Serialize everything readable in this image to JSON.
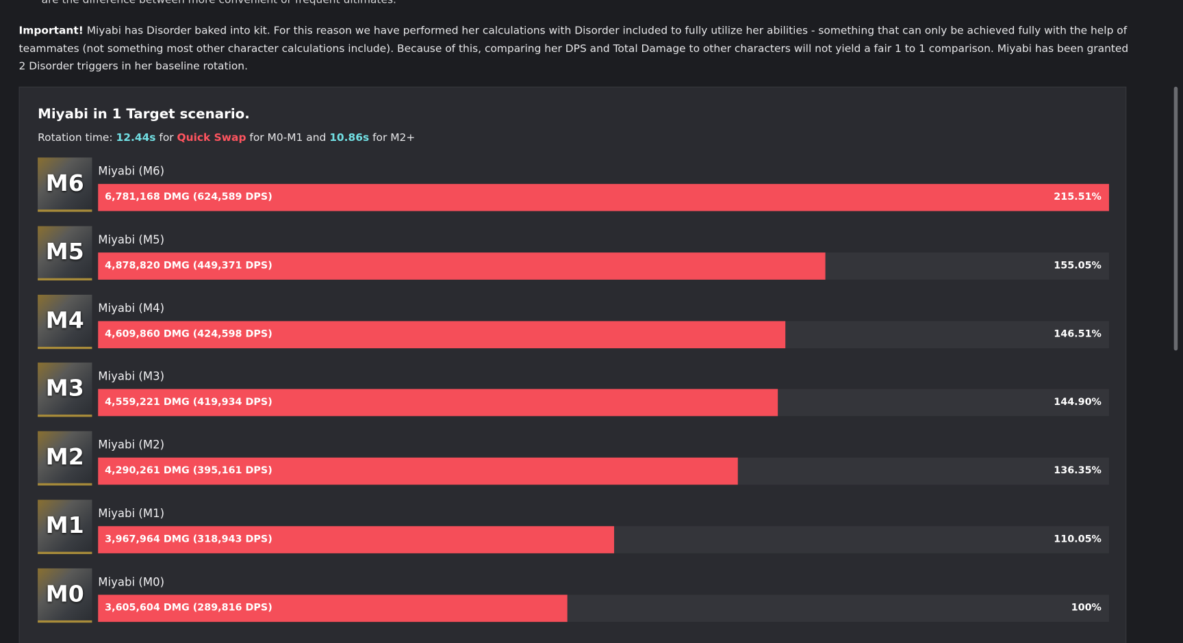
{
  "top_fragment": "are the difference between more convenient or frequent ultimates.",
  "notice": {
    "label": "Important!",
    "text": "Miyabi has Disorder baked into kit. For this reason we have performed her calculations with Disorder included to fully utilize her abilities - something that can only be achieved fully with the help of teammates (not something most other character calculations include). Because of this, comparing her DPS and Total Damage to other characters will not yield a fair 1 to 1 comparison. Miyabi has been granted 2 Disorder triggers in her baseline rotation."
  },
  "chart_data": {
    "type": "bar",
    "orientation": "horizontal",
    "title": "Miyabi in 1 Target scenario.",
    "subtitle": [
      {
        "text": "Rotation time:"
      },
      {
        "text": "12.44s",
        "color": "#72e0e4"
      },
      {
        "text": "for"
      },
      {
        "text": "Quick Swap",
        "color": "#ff545f"
      },
      {
        "text": "for M0-M1 and"
      },
      {
        "text": "10.86s",
        "color": "#72e0e4"
      },
      {
        "text": "for M2+"
      }
    ],
    "categories": [
      "Miyabi (M6)",
      "Miyabi (M5)",
      "Miyabi (M4)",
      "Miyabi (M3)",
      "Miyabi (M2)",
      "Miyabi (M1)",
      "Miyabi (M0)"
    ],
    "icon_labels": [
      "M6",
      "M5",
      "M4",
      "M3",
      "M2",
      "M1",
      "M0"
    ],
    "damage_labels": [
      "6,781,168 DMG (624,589 DPS)",
      "4,878,820 DMG (449,371 DPS)",
      "4,609,860 DMG (424,598 DPS)",
      "4,559,221 DMG (419,934 DPS)",
      "4,290,261 DMG (395,161 DPS)",
      "3,967,964 DMG (318,943 DPS)",
      "3,605,604 DMG (289,816 DPS)"
    ],
    "values": [
      215.51,
      155.05,
      146.51,
      144.9,
      136.35,
      110.05,
      100
    ],
    "value_labels": [
      "215.51%",
      "155.05%",
      "146.51%",
      "144.90%",
      "136.35%",
      "110.05%",
      "100%"
    ],
    "color": "#f54e59",
    "xlim": [
      0,
      215.51
    ]
  }
}
